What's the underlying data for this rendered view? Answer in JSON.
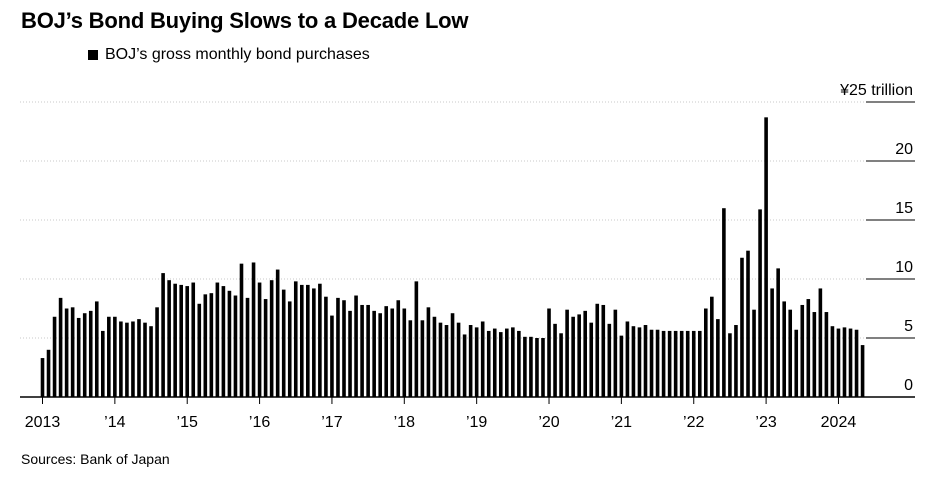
{
  "title": "BOJ’s Bond Buying Slows to a Decade Low",
  "legend": {
    "label": "BOJ’s gross monthly bond purchases",
    "color": "#000000"
  },
  "source": "Sources: Bank of Japan",
  "chart_data": {
    "type": "bar",
    "title": "BOJ’s Bond Buying Slows to a Decade Low",
    "xlabel": "",
    "ylabel": "",
    "ylim": [
      0,
      25
    ],
    "y_ticks": [
      0,
      5,
      10,
      15,
      20,
      25
    ],
    "y_tick_labels": [
      "0",
      "5",
      "10",
      "15",
      "20",
      "¥25 trillion"
    ],
    "x_tick_labels": [
      "2013",
      "’14",
      "’15",
      "’16",
      "’17",
      "’18",
      "’19",
      "’20",
      "’21",
      "’22",
      "’23",
      "2024"
    ],
    "x_tick_years": [
      2013,
      2014,
      2015,
      2016,
      2017,
      2018,
      2019,
      2020,
      2021,
      2022,
      2023,
      2024
    ],
    "start_month": "2013-01",
    "grid": "horizontal",
    "legend_position": "top-left",
    "bar_color": "#000000",
    "series": [
      {
        "name": "BOJ’s gross monthly bond purchases",
        "values": [
          3.3,
          4.0,
          6.8,
          8.4,
          7.5,
          7.6,
          6.7,
          7.1,
          7.3,
          8.1,
          5.6,
          6.8,
          6.8,
          6.4,
          6.3,
          6.4,
          6.6,
          6.3,
          6.0,
          7.6,
          10.5,
          9.9,
          9.6,
          9.5,
          9.4,
          9.7,
          7.9,
          8.7,
          8.8,
          9.7,
          9.4,
          9.0,
          8.6,
          11.3,
          8.4,
          11.4,
          9.7,
          8.3,
          9.9,
          10.8,
          9.1,
          8.1,
          9.8,
          9.5,
          9.5,
          9.2,
          9.6,
          8.5,
          6.9,
          8.4,
          8.2,
          7.3,
          8.6,
          7.8,
          7.8,
          7.3,
          7.1,
          7.7,
          7.5,
          8.2,
          7.5,
          6.5,
          9.8,
          6.5,
          7.6,
          6.8,
          6.3,
          6.1,
          7.1,
          6.3,
          5.3,
          6.1,
          5.9,
          6.4,
          5.6,
          5.8,
          5.5,
          5.8,
          5.9,
          5.6,
          5.1,
          5.1,
          5.0,
          5.0,
          7.5,
          6.2,
          5.4,
          7.4,
          6.8,
          7.0,
          7.3,
          6.3,
          7.9,
          7.8,
          6.2,
          7.4,
          5.2,
          6.4,
          6.0,
          5.9,
          6.1,
          5.7,
          5.7,
          5.6,
          5.6,
          5.6,
          5.6,
          5.6,
          5.6,
          5.6,
          7.5,
          8.5,
          6.6,
          16.0,
          5.4,
          6.1,
          11.8,
          12.4,
          7.4,
          15.9,
          23.7,
          9.2,
          10.9,
          8.1,
          7.4,
          5.7,
          7.8,
          8.3,
          7.2,
          9.2,
          7.2,
          6.0,
          5.8,
          5.9,
          5.8,
          5.7,
          4.4
        ]
      }
    ]
  }
}
